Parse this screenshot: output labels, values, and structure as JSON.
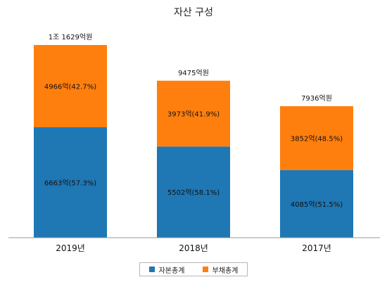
{
  "chart_data": {
    "type": "bar",
    "stacked": true,
    "title": "자산 구성",
    "categories": [
      "2019년",
      "2018년",
      "2017년"
    ],
    "series": [
      {
        "name": "자본총계",
        "color": "#1f77b4",
        "values": [
          6663,
          5502,
          4085
        ],
        "labels": [
          "6663억(57.3%)",
          "5502억(58.1%)",
          "4085억(51.5%)"
        ]
      },
      {
        "name": "부채총계",
        "color": "#ff7f0e",
        "values": [
          4966,
          3973,
          3852
        ],
        "labels": [
          "4966억(42.7%)",
          "3973억(41.9%)",
          "3852억(48.5%)"
        ]
      }
    ],
    "totals": [
      11629,
      9475,
      7936
    ],
    "total_labels": [
      "1조 1629억원",
      "9475억원",
      "7936억원"
    ],
    "ylim": [
      0,
      11629
    ],
    "legend_position": "bottom",
    "grid": false
  }
}
